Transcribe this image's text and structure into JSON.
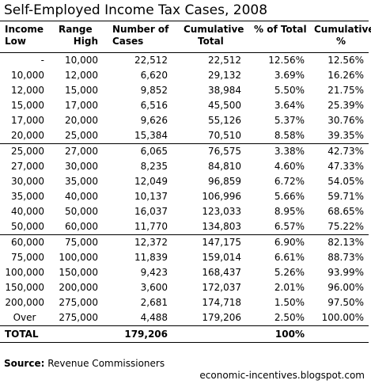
{
  "title": "Self-Employed Income Tax Cases, 2008",
  "headers": [
    {
      "line1": "Income",
      "line2": "Low"
    },
    {
      "line1": "Range",
      "line2": "High"
    },
    {
      "line1": "Number of",
      "line2": "Cases"
    },
    {
      "line1": "Cumulative",
      "line2": "Total"
    },
    {
      "line1": "% of Total",
      "line2": ""
    },
    {
      "line1": "Cumulative",
      "line2": "%"
    }
  ],
  "rows": [
    [
      "-",
      "10,000",
      "22,512",
      "22,512",
      "12.56%",
      "12.56%"
    ],
    [
      "10,000",
      "12,000",
      "6,620",
      "29,132",
      "3.69%",
      "16.26%"
    ],
    [
      "12,000",
      "15,000",
      "9,852",
      "38,984",
      "5.50%",
      "21.75%"
    ],
    [
      "15,000",
      "17,000",
      "6,516",
      "45,500",
      "3.64%",
      "25.39%"
    ],
    [
      "17,000",
      "20,000",
      "9,626",
      "55,126",
      "5.37%",
      "30.76%"
    ],
    [
      "20,000",
      "25,000",
      "15,384",
      "70,510",
      "8.58%",
      "39.35%"
    ],
    [
      "25,000",
      "27,000",
      "6,065",
      "76,575",
      "3.38%",
      "42.73%"
    ],
    [
      "27,000",
      "30,000",
      "8,235",
      "84,810",
      "4.60%",
      "47.33%"
    ],
    [
      "30,000",
      "35,000",
      "12,049",
      "96,859",
      "6.72%",
      "54.05%"
    ],
    [
      "35,000",
      "40,000",
      "10,137",
      "106,996",
      "5.66%",
      "59.71%"
    ],
    [
      "40,000",
      "50,000",
      "16,037",
      "123,033",
      "8.95%",
      "68.65%"
    ],
    [
      "50,000",
      "60,000",
      "11,770",
      "134,803",
      "6.57%",
      "75.22%"
    ],
    [
      "60,000",
      "75,000",
      "12,372",
      "147,175",
      "6.90%",
      "82.13%"
    ],
    [
      "75,000",
      "100,000",
      "11,839",
      "159,014",
      "6.61%",
      "88.73%"
    ],
    [
      "100,000",
      "150,000",
      "9,423",
      "168,437",
      "5.26%",
      "93.99%"
    ],
    [
      "150,000",
      "200,000",
      "3,600",
      "172,037",
      "2.01%",
      "96.00%"
    ],
    [
      "200,000",
      "275,000",
      "2,681",
      "174,718",
      "1.50%",
      "97.50%"
    ],
    [
      "Over",
      "275,000",
      "4,488",
      "179,206",
      "2.50%",
      "100.00%"
    ]
  ],
  "total": {
    "label": "TOTAL",
    "cases": "179,206",
    "percent": "100%"
  },
  "source": {
    "label": "Source:",
    "text": "Revenue Commissioners"
  },
  "credit": "economic-incentives.blogspot.com"
}
